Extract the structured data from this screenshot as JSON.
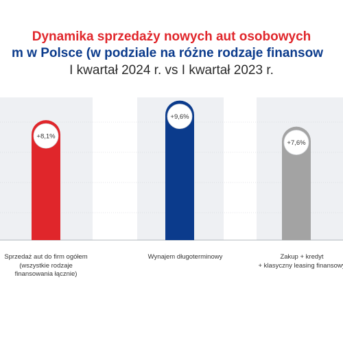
{
  "title": {
    "line1": "Dynamika sprzedaży nowych aut osobowych",
    "line2": "m w Polsce (w podziale na różne rodzaje finansow",
    "line3": "I kwartał 2024 r. vs I kwartał 2023 r."
  },
  "colors": {
    "red": "#e0262b",
    "navy": "#0b3b8c",
    "gray": "#a3a3a3",
    "column_bg": "#eef0f3",
    "grid": "#c9cdd4"
  },
  "chart_data": {
    "type": "bar",
    "title": "Dynamika sprzedaży nowych aut osobowych m w Polsce (w podziale na różne rodzaje finansow",
    "subtitle": "I kwartał 2024 r. vs I kwartał 2023 r.",
    "categories": [
      "Sprzedaż aut do firm ogółem (wszystkie rodzaje finansowania łącznie)",
      "Wynajem długoterminowy",
      "Zakup + kredyt + klasyczny leasing finansowy"
    ],
    "category_lines": [
      [
        "Sprzedaż aut do firm ogółem",
        "(wszystkie rodzaje",
        "finansowania łącznie)"
      ],
      [
        "Wynajem długoterminowy"
      ],
      [
        "Zakup + kredyt",
        "+ klasyczny leasing finansowy"
      ]
    ],
    "values": [
      8.1,
      9.6,
      7.6
    ],
    "data_labels": [
      "+8,1%",
      "+9,6%",
      "+7,6%"
    ],
    "bar_colors": [
      "#e0262b",
      "#0b3b8c",
      "#a3a3a3"
    ],
    "ylim": [
      0,
      10
    ],
    "grid": true,
    "legend": "none"
  }
}
